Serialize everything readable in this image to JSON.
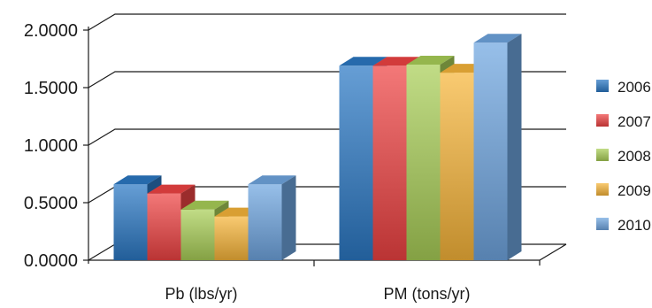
{
  "chart_data": {
    "type": "bar",
    "title": "",
    "xlabel": "",
    "ylabel": "",
    "categories": [
      "Pb (lbs/yr)",
      "PM (tons/yr)"
    ],
    "y_tick_labels": [
      "0.0000",
      "0.5000",
      "1.0000",
      "1.5000",
      "2.0000"
    ],
    "ylim": [
      0,
      2
    ],
    "grid": true,
    "legend_position": "right",
    "style": "3d",
    "series": [
      {
        "name": "2006",
        "values": [
          0.66,
          1.69
        ],
        "color": "#2b78c4"
      },
      {
        "name": "2007",
        "values": [
          0.58,
          1.69
        ],
        "color": "#ef4343"
      },
      {
        "name": "2008",
        "values": [
          0.44,
          1.7
        ],
        "color": "#a9cf57"
      },
      {
        "name": "2009",
        "values": [
          0.38,
          1.63
        ],
        "color": "#f7b53a"
      },
      {
        "name": "2010",
        "values": [
          0.66,
          1.89
        ],
        "color": "#6fa6e0"
      }
    ]
  }
}
